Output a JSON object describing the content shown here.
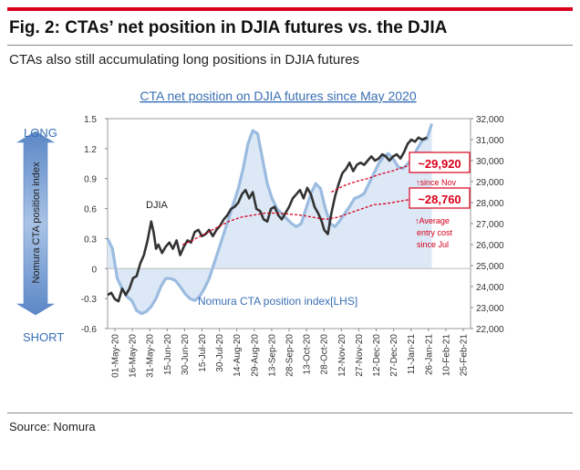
{
  "figure": {
    "title": "Fig. 2: CTAs’ net position in DJIA futures vs. the DJIA",
    "subtitle": "CTAs also still accumulating long positions in DJIA futures",
    "source": "Source: Nomura",
    "accent_color": "#d9001b"
  },
  "chart_data": {
    "type": "line",
    "title": "CTA net position on DJIA futures since May 2020",
    "left_axis": {
      "label": "Nomura CTA position index",
      "ticks": [
        "1.5",
        "1.2",
        "0.9",
        "0.6",
        "0.3",
        "0",
        "-0.3",
        "-0.6"
      ],
      "range": [
        -0.6,
        1.5
      ]
    },
    "right_axis": {
      "ticks": [
        "32,000",
        "31,000",
        "30,000",
        "29,000",
        "28,000",
        "27,000",
        "26,000",
        "25,000",
        "24,000",
        "23,000",
        "22,000"
      ],
      "range": [
        22000,
        32000
      ]
    },
    "x_ticks": [
      "01-May-20",
      "16-May-20",
      "31-May-20",
      "15-Jun-20",
      "30-Jun-20",
      "15-Jul-20",
      "30-Jul-20",
      "14-Aug-20",
      "29-Aug-20",
      "13-Sep-20",
      "28-Sep-20",
      "13-Oct-20",
      "28-Oct-20",
      "12-Nov-20",
      "27-Nov-20",
      "12-Dec-20",
      "27-Dec-20",
      "11-Jan-21",
      "26-Jan-21",
      "10-Feb-21",
      "25-Feb-21"
    ],
    "x_range_days": [
      0,
      300
    ],
    "long_label": "LONG",
    "short_label": "SHORT",
    "series": [
      {
        "name": "Nomura CTA position index[LHS]",
        "axis": "left",
        "color": "#9bbbe0",
        "fill": "#dce8f6",
        "points": [
          [
            0,
            0.3
          ],
          [
            4,
            0.2
          ],
          [
            8,
            -0.1
          ],
          [
            12,
            -0.2
          ],
          [
            16,
            -0.28
          ],
          [
            20,
            -0.32
          ],
          [
            24,
            -0.42
          ],
          [
            28,
            -0.45
          ],
          [
            32,
            -0.43
          ],
          [
            36,
            -0.38
          ],
          [
            40,
            -0.3
          ],
          [
            44,
            -0.18
          ],
          [
            48,
            -0.1
          ],
          [
            52,
            -0.1
          ],
          [
            56,
            -0.12
          ],
          [
            60,
            -0.18
          ],
          [
            64,
            -0.25
          ],
          [
            68,
            -0.3
          ],
          [
            72,
            -0.32
          ],
          [
            76,
            -0.28
          ],
          [
            80,
            -0.2
          ],
          [
            84,
            -0.1
          ],
          [
            88,
            0.05
          ],
          [
            92,
            0.2
          ],
          [
            96,
            0.35
          ],
          [
            100,
            0.5
          ],
          [
            104,
            0.65
          ],
          [
            108,
            0.8
          ],
          [
            112,
            1.0
          ],
          [
            116,
            1.25
          ],
          [
            120,
            1.38
          ],
          [
            124,
            1.35
          ],
          [
            128,
            1.1
          ],
          [
            132,
            0.85
          ],
          [
            136,
            0.7
          ],
          [
            140,
            0.6
          ],
          [
            144,
            0.55
          ],
          [
            148,
            0.5
          ],
          [
            152,
            0.45
          ],
          [
            156,
            0.42
          ],
          [
            160,
            0.45
          ],
          [
            164,
            0.6
          ],
          [
            168,
            0.75
          ],
          [
            172,
            0.85
          ],
          [
            176,
            0.8
          ],
          [
            180,
            0.6
          ],
          [
            184,
            0.45
          ],
          [
            188,
            0.42
          ],
          [
            192,
            0.48
          ],
          [
            196,
            0.55
          ],
          [
            200,
            0.62
          ],
          [
            204,
            0.7
          ],
          [
            208,
            0.72
          ],
          [
            212,
            0.75
          ],
          [
            216,
            0.85
          ],
          [
            220,
            0.95
          ],
          [
            224,
            1.05
          ],
          [
            228,
            1.12
          ],
          [
            232,
            1.15
          ],
          [
            236,
            1.1
          ],
          [
            240,
            1.02
          ],
          [
            244,
            1.0
          ],
          [
            248,
            1.05
          ],
          [
            252,
            1.1
          ],
          [
            256,
            1.2
          ],
          [
            260,
            1.28
          ],
          [
            264,
            1.3
          ],
          [
            268,
            1.45
          ]
        ]
      },
      {
        "name": "DJIA",
        "axis": "right",
        "color": "#333333",
        "points": [
          [
            0,
            23600
          ],
          [
            3,
            23700
          ],
          [
            6,
            23400
          ],
          [
            9,
            23300
          ],
          [
            12,
            23900
          ],
          [
            15,
            23600
          ],
          [
            18,
            23900
          ],
          [
            21,
            24400
          ],
          [
            24,
            24500
          ],
          [
            27,
            25100
          ],
          [
            30,
            25500
          ],
          [
            33,
            26200
          ],
          [
            36,
            27100
          ],
          [
            38,
            26600
          ],
          [
            40,
            25800
          ],
          [
            42,
            26000
          ],
          [
            45,
            25600
          ],
          [
            48,
            25900
          ],
          [
            51,
            26100
          ],
          [
            54,
            25800
          ],
          [
            57,
            26200
          ],
          [
            60,
            25500
          ],
          [
            63,
            25900
          ],
          [
            66,
            26200
          ],
          [
            69,
            26100
          ],
          [
            72,
            26600
          ],
          [
            75,
            26700
          ],
          [
            78,
            26400
          ],
          [
            81,
            26500
          ],
          [
            84,
            26700
          ],
          [
            87,
            26400
          ],
          [
            90,
            26700
          ],
          [
            93,
            26900
          ],
          [
            96,
            27200
          ],
          [
            99,
            27400
          ],
          [
            102,
            27700
          ],
          [
            105,
            27800
          ],
          [
            108,
            28000
          ],
          [
            111,
            28400
          ],
          [
            114,
            28600
          ],
          [
            117,
            28200
          ],
          [
            120,
            28500
          ],
          [
            123,
            27700
          ],
          [
            126,
            27600
          ],
          [
            129,
            27200
          ],
          [
            132,
            27100
          ],
          [
            135,
            27700
          ],
          [
            138,
            27800
          ],
          [
            141,
            27400
          ],
          [
            144,
            27200
          ],
          [
            147,
            27500
          ],
          [
            150,
            27800
          ],
          [
            153,
            28200
          ],
          [
            156,
            28400
          ],
          [
            159,
            28600
          ],
          [
            162,
            28200
          ],
          [
            165,
            28700
          ],
          [
            168,
            28400
          ],
          [
            171,
            27800
          ],
          [
            174,
            27500
          ],
          [
            177,
            27100
          ],
          [
            179,
            26700
          ],
          [
            182,
            26500
          ],
          [
            185,
            27500
          ],
          [
            188,
            28300
          ],
          [
            191,
            28900
          ],
          [
            194,
            29400
          ],
          [
            197,
            29600
          ],
          [
            200,
            29900
          ],
          [
            203,
            29500
          ],
          [
            206,
            29800
          ],
          [
            209,
            29900
          ],
          [
            212,
            29800
          ],
          [
            215,
            30000
          ],
          [
            218,
            30200
          ],
          [
            221,
            30000
          ],
          [
            224,
            30100
          ],
          [
            227,
            30300
          ],
          [
            230,
            30200
          ],
          [
            233,
            30000
          ],
          [
            236,
            30200
          ],
          [
            239,
            30300
          ],
          [
            242,
            30100
          ],
          [
            245,
            30400
          ],
          [
            248,
            30800
          ],
          [
            251,
            31000
          ],
          [
            254,
            30900
          ],
          [
            257,
            31100
          ],
          [
            260,
            31000
          ],
          [
            264,
            31100
          ]
        ]
      },
      {
        "name": "Average entry cost since Jul",
        "axis": "right",
        "color": "#d9001b",
        "dashed": true,
        "points": [
          [
            62,
            26000
          ],
          [
            70,
            26200
          ],
          [
            80,
            26500
          ],
          [
            90,
            26800
          ],
          [
            100,
            27100
          ],
          [
            110,
            27300
          ],
          [
            120,
            27400
          ],
          [
            130,
            27500
          ],
          [
            140,
            27500
          ],
          [
            150,
            27450
          ],
          [
            160,
            27400
          ],
          [
            170,
            27300
          ],
          [
            180,
            27200
          ],
          [
            190,
            27300
          ],
          [
            200,
            27500
          ],
          [
            210,
            27700
          ],
          [
            220,
            27900
          ],
          [
            230,
            27950
          ],
          [
            240,
            28050
          ],
          [
            250,
            28150
          ],
          [
            260,
            28300
          ],
          [
            265,
            28400
          ]
        ]
      },
      {
        "name": "Average entry cost since Nov",
        "axis": "right",
        "color": "#d9001b",
        "dashed": true,
        "points": [
          [
            185,
            28500
          ],
          [
            195,
            28800
          ],
          [
            205,
            29000
          ],
          [
            215,
            29150
          ],
          [
            225,
            29350
          ],
          [
            235,
            29500
          ],
          [
            245,
            29700
          ],
          [
            255,
            29850
          ],
          [
            265,
            29950
          ]
        ]
      }
    ],
    "annotations": {
      "djia_label": "DJIA",
      "index_label": "Nomura CTA position index[LHS]",
      "callout_nov_value": "~29,920",
      "callout_nov_note": "↑since Nov",
      "callout_jul_value": "~28,760",
      "callout_jul_note_lines": [
        "↑Average",
        "entry cost",
        "since Jul"
      ]
    }
  }
}
